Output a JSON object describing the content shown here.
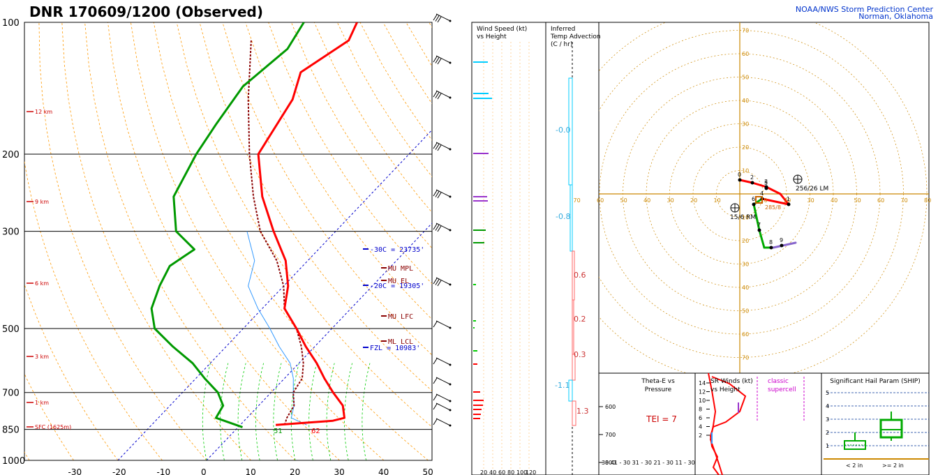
{
  "header": {
    "title": "DNR   170609/1200  (Observed)",
    "credit_line1": "NOAA/NWS Storm Prediction Center",
    "credit_line2": "Norman, Oklahoma"
  },
  "colors": {
    "temperature": "#ff0000",
    "dewpoint": "#009900",
    "wetbulb": "#3399ff",
    "parcel": "#8b0000",
    "isotherm": "#0000cc",
    "dry_adiabat": "#ff9900",
    "moist_adiabat": "#00cc00",
    "height_label": "#cc0000",
    "hodo_rings": "#cc8800"
  },
  "chart_data": [
    {
      "type": "line",
      "name": "skewt",
      "pressure_ticks": [
        "100",
        "200",
        "300",
        "500",
        "700",
        "850",
        "1000"
      ],
      "temperature_ticks": [
        "-30",
        "-20",
        "-10",
        "0",
        "10",
        "20",
        "30",
        "40",
        "50"
      ],
      "height_labels": [
        "12 km",
        "9 km",
        "6 km",
        "3 km",
        "1 km",
        "SFC (1625m)"
      ],
      "temperature_profile": {
        "p": [
          100,
          110,
          130,
          150,
          200,
          250,
          300,
          350,
          400,
          450,
          500,
          550,
          600,
          650,
          700,
          750,
          800,
          812,
          830
        ],
        "t": [
          -60,
          -58,
          -62,
          -58,
          -54,
          -44,
          -34,
          -25,
          -19,
          -15,
          -8,
          -2,
          4,
          9,
          14,
          19,
          22,
          20,
          8
        ]
      },
      "dewpoint_profile": {
        "p": [
          100,
          115,
          140,
          170,
          200,
          250,
          300,
          330,
          360,
          400,
          450,
          500,
          550,
          600,
          650,
          700,
          750,
          800,
          840
        ],
        "t": [
          -72,
          -70,
          -72,
          -70,
          -68,
          -64,
          -56,
          -48,
          -50,
          -48,
          -45,
          -40,
          -32,
          -24,
          -18,
          -12,
          -8,
          -7,
          1
        ]
      },
      "wetbulb_profile": {
        "p": [
          300,
          350,
          400,
          450,
          500,
          550,
          600,
          650,
          700,
          750,
          800,
          830
        ],
        "t": [
          -40,
          -32,
          -28,
          -21,
          -14,
          -8,
          -2,
          2,
          5,
          8,
          10,
          15
        ]
      },
      "parcel_profile": {
        "p": [
          110,
          150,
          200,
          250,
          300,
          350,
          400,
          450,
          500,
          550,
          600,
          650,
          700,
          750,
          800,
          830
        ],
        "t": [
          -80,
          -68,
          -56,
          -46,
          -37,
          -27,
          -20,
          -15,
          -8,
          -3,
          1,
          4,
          5,
          8,
          9,
          10
        ]
      },
      "levels": [
        {
          "label": "-30C = 23735'"
        },
        {
          "label": "MU MPL"
        },
        {
          "label": "MU EL"
        },
        {
          "label": "-20C = 19305'"
        },
        {
          "label": "MU LFC"
        },
        {
          "label": "ML LCL"
        },
        {
          "label": "FZL = 10983'"
        }
      ],
      "surface_dewpoint_label": "51",
      "surface_temp_label": "62"
    },
    {
      "type": "bar",
      "name": "wind-speed-vs-height",
      "title_line1": "Wind Speed (kt)",
      "title_line2": "vs Height",
      "x_ticks": [
        "20",
        "40",
        "60",
        "80",
        "100",
        "120"
      ]
    },
    {
      "type": "bar",
      "name": "inferred-temp-advection",
      "title_line1": "Inferred",
      "title_line2": "Temp Advection",
      "title_line3": "(C / hr)",
      "values": [
        {
          "label": "-0.0"
        },
        {
          "label": "-0.8"
        },
        {
          "label": "0.6"
        },
        {
          "label": "0.2"
        },
        {
          "label": "0.3"
        },
        {
          "label": "-1.1"
        },
        {
          "label": "1.3"
        }
      ]
    },
    {
      "type": "line",
      "name": "hodograph",
      "ring_labels": [
        "10",
        "20",
        "30",
        "40",
        "50",
        "60",
        "70"
      ],
      "axis_labels": [
        "70",
        "60",
        "50",
        "40",
        "30",
        "20",
        "10",
        "10",
        "20",
        "30",
        "40",
        "50",
        "60",
        "70",
        "80"
      ],
      "points_km": [
        "0",
        "2",
        "3",
        "1",
        "6",
        "4",
        "5",
        "7",
        "8",
        "9"
      ],
      "storm_motion_lm": "256/26 LM",
      "storm_motion_rm": "15/6 RM",
      "mean_wind": "285/8"
    },
    {
      "type": "line",
      "name": "theta-e-vs-pressure",
      "title_line1": "Theta-E vs",
      "title_line2": "Pressure",
      "p_ticks": [
        "600",
        "700",
        "800"
      ],
      "x_ticks": "30 41 - 30 31 - 30 21 - 30 11 - 30",
      "tei": "TEI = 7"
    },
    {
      "type": "line",
      "name": "sr-winds",
      "title_line1": "SR Winds (kt)",
      "title_line2": "vs Height",
      "height_ticks": [
        "14",
        "12",
        "10",
        "8",
        "6",
        "4",
        "2"
      ],
      "classic_label_line1": "classic",
      "classic_label_line2": "supercell"
    },
    {
      "type": "bar",
      "name": "ship",
      "title": "Significant Hail Param (SHIP)",
      "y_ticks": [
        "5",
        "4",
        "3",
        "2",
        "1"
      ],
      "categories": [
        "< 2 in",
        ">= 2 in"
      ]
    }
  ]
}
